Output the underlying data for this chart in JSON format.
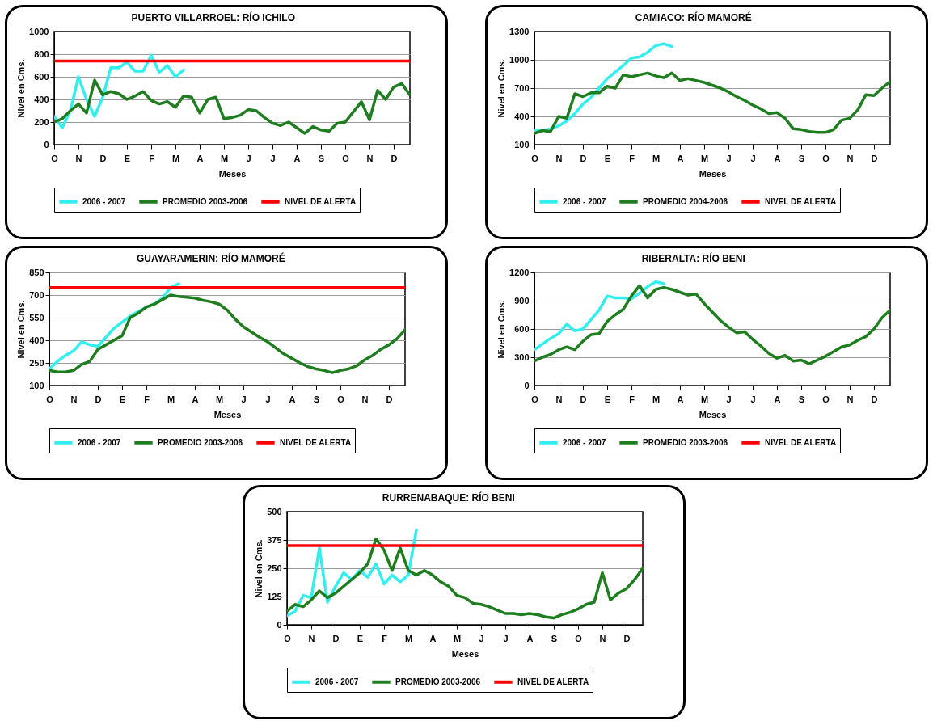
{
  "chart_data": [
    {
      "type": "line",
      "title": "PUERTO  VILLARROEL: RÍO ICHILO",
      "xlabel": "Meses",
      "ylabel": "Nivel en Cms.",
      "categories": [
        "O",
        null,
        null,
        "N",
        null,
        null,
        "D",
        null,
        null,
        "E",
        null,
        null,
        "F",
        null,
        null,
        "M",
        null,
        null,
        "A",
        null,
        null,
        "M",
        null,
        null,
        "J",
        null,
        null,
        "J",
        null,
        null,
        "A",
        null,
        null,
        "S",
        null,
        null,
        "O",
        null,
        null,
        "N",
        null,
        null,
        "D",
        null,
        null
      ],
      "ylim": [
        0,
        1000
      ],
      "yticks": [
        0,
        200,
        400,
        600,
        800,
        1000
      ],
      "grid": "y",
      "legend": "bottom",
      "series": [
        {
          "name": "2006 - 2007",
          "color": "#33eeee",
          "values": [
            250,
            150,
            300,
            600,
            400,
            250,
            420,
            680,
            680,
            730,
            650,
            650,
            790,
            640,
            700,
            600,
            660,
            null,
            null,
            null,
            null,
            null,
            null,
            null,
            null,
            null,
            null,
            null,
            null,
            null,
            null,
            null,
            null,
            null,
            null,
            null,
            null,
            null,
            null,
            null,
            null,
            null,
            null,
            null,
            null
          ]
        },
        {
          "name": "PROMEDIO 2003-2006",
          "color": "#1e7d1e",
          "values": [
            200,
            230,
            300,
            360,
            280,
            570,
            440,
            470,
            450,
            400,
            430,
            470,
            390,
            360,
            380,
            330,
            430,
            420,
            280,
            400,
            420,
            230,
            240,
            260,
            310,
            300,
            240,
            190,
            170,
            200,
            150,
            100,
            160,
            130,
            120,
            190,
            200,
            290,
            380,
            220,
            480,
            400,
            510,
            540,
            440
          ]
        },
        {
          "name": "NIVEL DE ALERTA",
          "color": "#ff0000",
          "values": [
            740,
            740,
            740,
            740,
            740,
            740,
            740,
            740,
            740,
            740,
            740,
            740,
            740,
            740,
            740,
            740,
            740,
            740,
            740,
            740,
            740,
            740,
            740,
            740,
            740,
            740,
            740,
            740,
            740,
            740,
            740,
            740,
            740,
            740,
            740,
            740,
            740,
            740,
            740,
            740,
            740,
            740,
            740,
            740,
            740
          ]
        }
      ]
    },
    {
      "type": "line",
      "title": "CAMIACO: RÍO MAMORÉ",
      "xlabel": "Meses",
      "ylabel": "Nivel en Cms.",
      "categories": [
        "O",
        null,
        null,
        "N",
        null,
        null,
        "D",
        null,
        null,
        "E",
        null,
        null,
        "F",
        null,
        null,
        "M",
        null,
        null,
        "A",
        null,
        null,
        "M",
        null,
        null,
        "J",
        null,
        null,
        "J",
        null,
        null,
        "A",
        null,
        null,
        "S",
        null,
        null,
        "O",
        null,
        null,
        "N",
        null,
        null,
        "D",
        null,
        null
      ],
      "ylim": [
        100,
        1300
      ],
      "yticks": [
        100,
        400,
        700,
        1000,
        1300
      ],
      "grid": "y",
      "legend": "bottom",
      "series": [
        {
          "name": "2006 - 2007",
          "color": "#33eeee",
          "values": [
            250,
            250,
            270,
            300,
            350,
            430,
            530,
            600,
            700,
            800,
            870,
            940,
            1020,
            1030,
            1080,
            1150,
            1170,
            1140,
            null,
            null,
            null,
            null,
            null,
            null,
            null,
            null,
            null,
            null,
            null,
            null,
            null,
            null,
            null,
            null,
            null,
            null,
            null,
            null,
            null,
            null,
            null,
            null,
            null,
            null,
            null
          ]
        },
        {
          "name": "PROMEDIO 2004-2006",
          "color": "#1e7d1e",
          "values": [
            220,
            250,
            240,
            400,
            380,
            640,
            610,
            650,
            650,
            720,
            700,
            840,
            820,
            840,
            860,
            830,
            810,
            860,
            780,
            800,
            780,
            760,
            730,
            700,
            660,
            610,
            570,
            520,
            480,
            430,
            440,
            380,
            270,
            260,
            240,
            230,
            230,
            260,
            360,
            380,
            470,
            630,
            620,
            700,
            770
          ]
        },
        {
          "name": "NIVEL DE ALERTA",
          "color": "#ff0000",
          "values": [
            null,
            null,
            null,
            null,
            null,
            null,
            null,
            null,
            null,
            null,
            null,
            null,
            null,
            null,
            null,
            null,
            null,
            null,
            null,
            null,
            null,
            null,
            null,
            null,
            null,
            null,
            null,
            null,
            null,
            null,
            null,
            null,
            null,
            null,
            null,
            null,
            null,
            null,
            null,
            null,
            null,
            null,
            null,
            null,
            null
          ]
        }
      ]
    },
    {
      "type": "line",
      "title": "GUAYARAMERIN: RÍO MAMORÉ",
      "xlabel": "Meses",
      "ylabel": "Nivel en Cms.",
      "categories": [
        "O",
        null,
        null,
        "N",
        null,
        null,
        "D",
        null,
        null,
        "E",
        null,
        null,
        "F",
        null,
        null,
        "M",
        null,
        null,
        "A",
        null,
        null,
        "M",
        null,
        null,
        "J",
        null,
        null,
        "J",
        null,
        null,
        "A",
        null,
        null,
        "S",
        null,
        null,
        "O",
        null,
        null,
        "N",
        null,
        null,
        "D",
        null,
        null
      ],
      "ylim": [
        100,
        850
      ],
      "yticks": [
        100,
        250,
        400,
        550,
        700,
        850
      ],
      "grid": "y",
      "legend": "bottom",
      "series": [
        {
          "name": "2006 - 2007",
          "color": "#33eeee",
          "values": [
            210,
            260,
            300,
            330,
            390,
            370,
            360,
            420,
            480,
            520,
            560,
            590,
            620,
            640,
            680,
            750,
            775,
            null,
            null,
            null,
            null,
            null,
            null,
            null,
            null,
            null,
            null,
            null,
            null,
            null,
            null,
            null,
            null,
            null,
            null,
            null,
            null,
            null,
            null,
            null,
            null,
            null,
            null,
            null,
            null
          ]
        },
        {
          "name": "PROMEDIO 2003-2006",
          "color": "#1e7d1e",
          "values": [
            200,
            190,
            190,
            200,
            240,
            260,
            340,
            370,
            400,
            430,
            550,
            580,
            620,
            640,
            670,
            700,
            690,
            685,
            680,
            665,
            655,
            640,
            600,
            540,
            490,
            455,
            420,
            390,
            350,
            310,
            280,
            250,
            225,
            210,
            200,
            185,
            200,
            210,
            230,
            270,
            300,
            340,
            370,
            410,
            470
          ]
        },
        {
          "name": "NIVEL DE ALERTA",
          "color": "#ff0000",
          "values": [
            750,
            750,
            750,
            750,
            750,
            750,
            750,
            750,
            750,
            750,
            750,
            750,
            750,
            750,
            750,
            750,
            750,
            750,
            750,
            750,
            750,
            750,
            750,
            750,
            750,
            750,
            750,
            750,
            750,
            750,
            750,
            750,
            750,
            750,
            750,
            750,
            750,
            750,
            750,
            750,
            750,
            750,
            750,
            750,
            750
          ]
        }
      ]
    },
    {
      "type": "line",
      "title": "RIBERALTA: RÍO BENI",
      "xlabel": "Meses",
      "ylabel": "Nivel en Cms.",
      "categories": [
        "O",
        null,
        null,
        "N",
        null,
        null,
        "D",
        null,
        null,
        "E",
        null,
        null,
        "F",
        null,
        null,
        "M",
        null,
        null,
        "A",
        null,
        null,
        "M",
        null,
        null,
        "J",
        null,
        null,
        "J",
        null,
        null,
        "A",
        null,
        null,
        "S",
        null,
        null,
        "O",
        null,
        null,
        "N",
        null,
        null,
        "D",
        null,
        null
      ],
      "ylim": [
        0,
        1200
      ],
      "yticks": [
        0,
        300,
        600,
        900,
        1200
      ],
      "grid": "y",
      "legend": "bottom",
      "series": [
        {
          "name": "2006 - 2007",
          "color": "#33eeee",
          "values": [
            380,
            440,
            500,
            550,
            650,
            580,
            600,
            700,
            800,
            950,
            930,
            930,
            920,
            980,
            1050,
            1100,
            1080,
            null,
            null,
            null,
            null,
            null,
            null,
            null,
            null,
            null,
            null,
            null,
            null,
            null,
            null,
            null,
            null,
            null,
            null,
            null,
            null,
            null,
            null,
            null,
            null,
            null,
            null,
            null,
            null
          ]
        },
        {
          "name": "PROMEDIO 2003-2006",
          "color": "#1e7d1e",
          "values": [
            260,
            300,
            330,
            380,
            410,
            380,
            470,
            540,
            550,
            680,
            750,
            810,
            950,
            1060,
            930,
            1020,
            1040,
            1020,
            990,
            960,
            970,
            870,
            780,
            690,
            620,
            560,
            570,
            490,
            420,
            340,
            290,
            320,
            260,
            270,
            230,
            270,
            310,
            360,
            410,
            430,
            480,
            520,
            600,
            720,
            800
          ]
        },
        {
          "name": "NIVEL DE ALERTA",
          "color": "#ff0000",
          "values": [
            null,
            null,
            null,
            null,
            null,
            null,
            null,
            null,
            null,
            null,
            null,
            null,
            null,
            null,
            null,
            null,
            null,
            null,
            null,
            null,
            null,
            null,
            null,
            null,
            null,
            null,
            null,
            null,
            null,
            null,
            null,
            null,
            null,
            null,
            null,
            null,
            null,
            null,
            null,
            null,
            null,
            null,
            null,
            null,
            null
          ]
        }
      ]
    },
    {
      "type": "line",
      "title": "RURRENABAQUE: RÍO BENI",
      "xlabel": "Meses",
      "ylabel": "Nivel en Cms.",
      "categories": [
        "O",
        null,
        null,
        "N",
        null,
        null,
        "D",
        null,
        null,
        "E",
        null,
        null,
        "F",
        null,
        null,
        "M",
        null,
        null,
        "A",
        null,
        null,
        "M",
        null,
        null,
        "J",
        null,
        null,
        "J",
        null,
        null,
        "A",
        null,
        null,
        "S",
        null,
        null,
        "O",
        null,
        null,
        "N",
        null,
        null,
        "D",
        null,
        null
      ],
      "ylim": [
        0,
        500
      ],
      "yticks": [
        0,
        125,
        250,
        375,
        500
      ],
      "grid": "y",
      "legend": "bottom",
      "series": [
        {
          "name": "2006 - 2007",
          "color": "#33eeee",
          "values": [
            40,
            60,
            130,
            120,
            340,
            100,
            170,
            230,
            200,
            240,
            210,
            270,
            180,
            220,
            190,
            220,
            420,
            null,
            null,
            null,
            null,
            null,
            null,
            null,
            null,
            null,
            null,
            null,
            null,
            null,
            null,
            null,
            null,
            null,
            null,
            null,
            null,
            null,
            null,
            null,
            null,
            null,
            null,
            null,
            null
          ]
        },
        {
          "name": "PROMEDIO 2003-2006",
          "color": "#1e7d1e",
          "values": [
            60,
            90,
            80,
            110,
            150,
            120,
            140,
            170,
            200,
            230,
            270,
            380,
            330,
            240,
            340,
            240,
            220,
            240,
            220,
            190,
            170,
            130,
            120,
            95,
            90,
            80,
            65,
            50,
            50,
            45,
            50,
            45,
            35,
            30,
            45,
            55,
            70,
            90,
            100,
            230,
            110,
            140,
            160,
            200,
            250
          ]
        },
        {
          "name": "NIVEL DE ALERTA",
          "color": "#ff0000",
          "values": [
            350,
            350,
            350,
            350,
            350,
            350,
            350,
            350,
            350,
            350,
            350,
            350,
            350,
            350,
            350,
            350,
            350,
            350,
            350,
            350,
            350,
            350,
            350,
            350,
            350,
            350,
            350,
            350,
            350,
            350,
            350,
            350,
            350,
            350,
            350,
            350,
            350,
            350,
            350,
            350,
            350,
            350,
            350,
            350,
            350
          ]
        }
      ]
    }
  ]
}
